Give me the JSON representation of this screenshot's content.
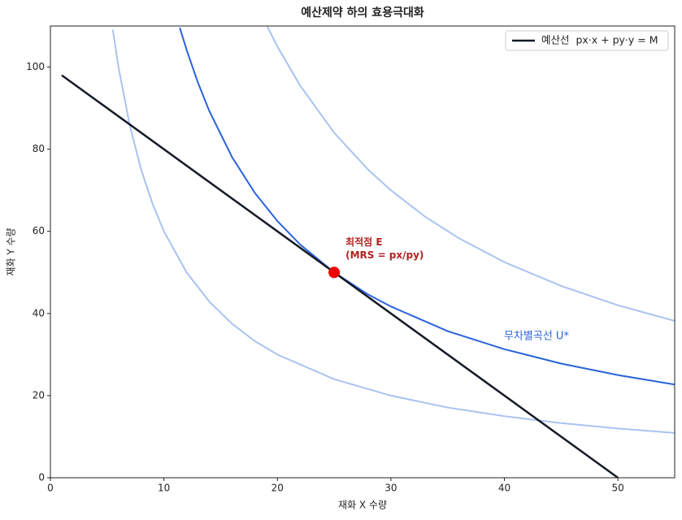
{
  "chart_data": {
    "type": "line",
    "title": "예산제약 하의 효용극대화",
    "xlabel": "재화 X 수량",
    "ylabel": "재화 Y 수량",
    "xlim": [
      0,
      55
    ],
    "ylim": [
      0,
      110
    ],
    "xticks": [
      0,
      10,
      20,
      30,
      40,
      50
    ],
    "yticks": [
      0,
      20,
      40,
      60,
      80,
      100
    ],
    "legend": "upper right",
    "series": [
      {
        "color": "#a9c3f0",
        "x": [
          5.5,
          6,
          7,
          8,
          9,
          10,
          12,
          14,
          16,
          18,
          20,
          25,
          30,
          35,
          40,
          45,
          50,
          55
        ],
        "values": [
          109.1,
          100,
          85.7,
          75,
          66.7,
          60,
          50,
          42.9,
          37.5,
          33.3,
          30,
          24,
          20,
          17.1,
          15,
          13.3,
          12,
          10.9
        ]
      },
      {
        "color": "#2a63dc",
        "label": "무차별곡선 U*",
        "x": [
          11.4,
          12,
          13,
          14,
          16,
          18,
          20,
          22,
          25,
          28,
          30,
          35,
          40,
          45,
          50,
          55
        ],
        "values": [
          109.6,
          104.2,
          96.2,
          89.3,
          78.1,
          69.4,
          62.5,
          56.8,
          50,
          44.6,
          41.7,
          35.7,
          31.3,
          27.8,
          25,
          22.7
        ]
      },
      {
        "color": "#a9c3f0",
        "x": [
          19.1,
          20,
          22,
          25,
          28,
          30,
          33,
          36,
          40,
          45,
          50,
          55
        ],
        "values": [
          109.9,
          105,
          95.5,
          84,
          75,
          70,
          63.6,
          58.3,
          52.5,
          46.7,
          42,
          38.2
        ]
      },
      {
        "name": "예산선  px·x + py·y = M",
        "color": "#141a26",
        "x": [
          1,
          50
        ],
        "values": [
          98,
          0
        ]
      }
    ],
    "optimum": {
      "x": 25,
      "y": 50,
      "color": "#ee0000",
      "label": [
        "최적점 E",
        "(MRS = px/py)"
      ]
    }
  }
}
